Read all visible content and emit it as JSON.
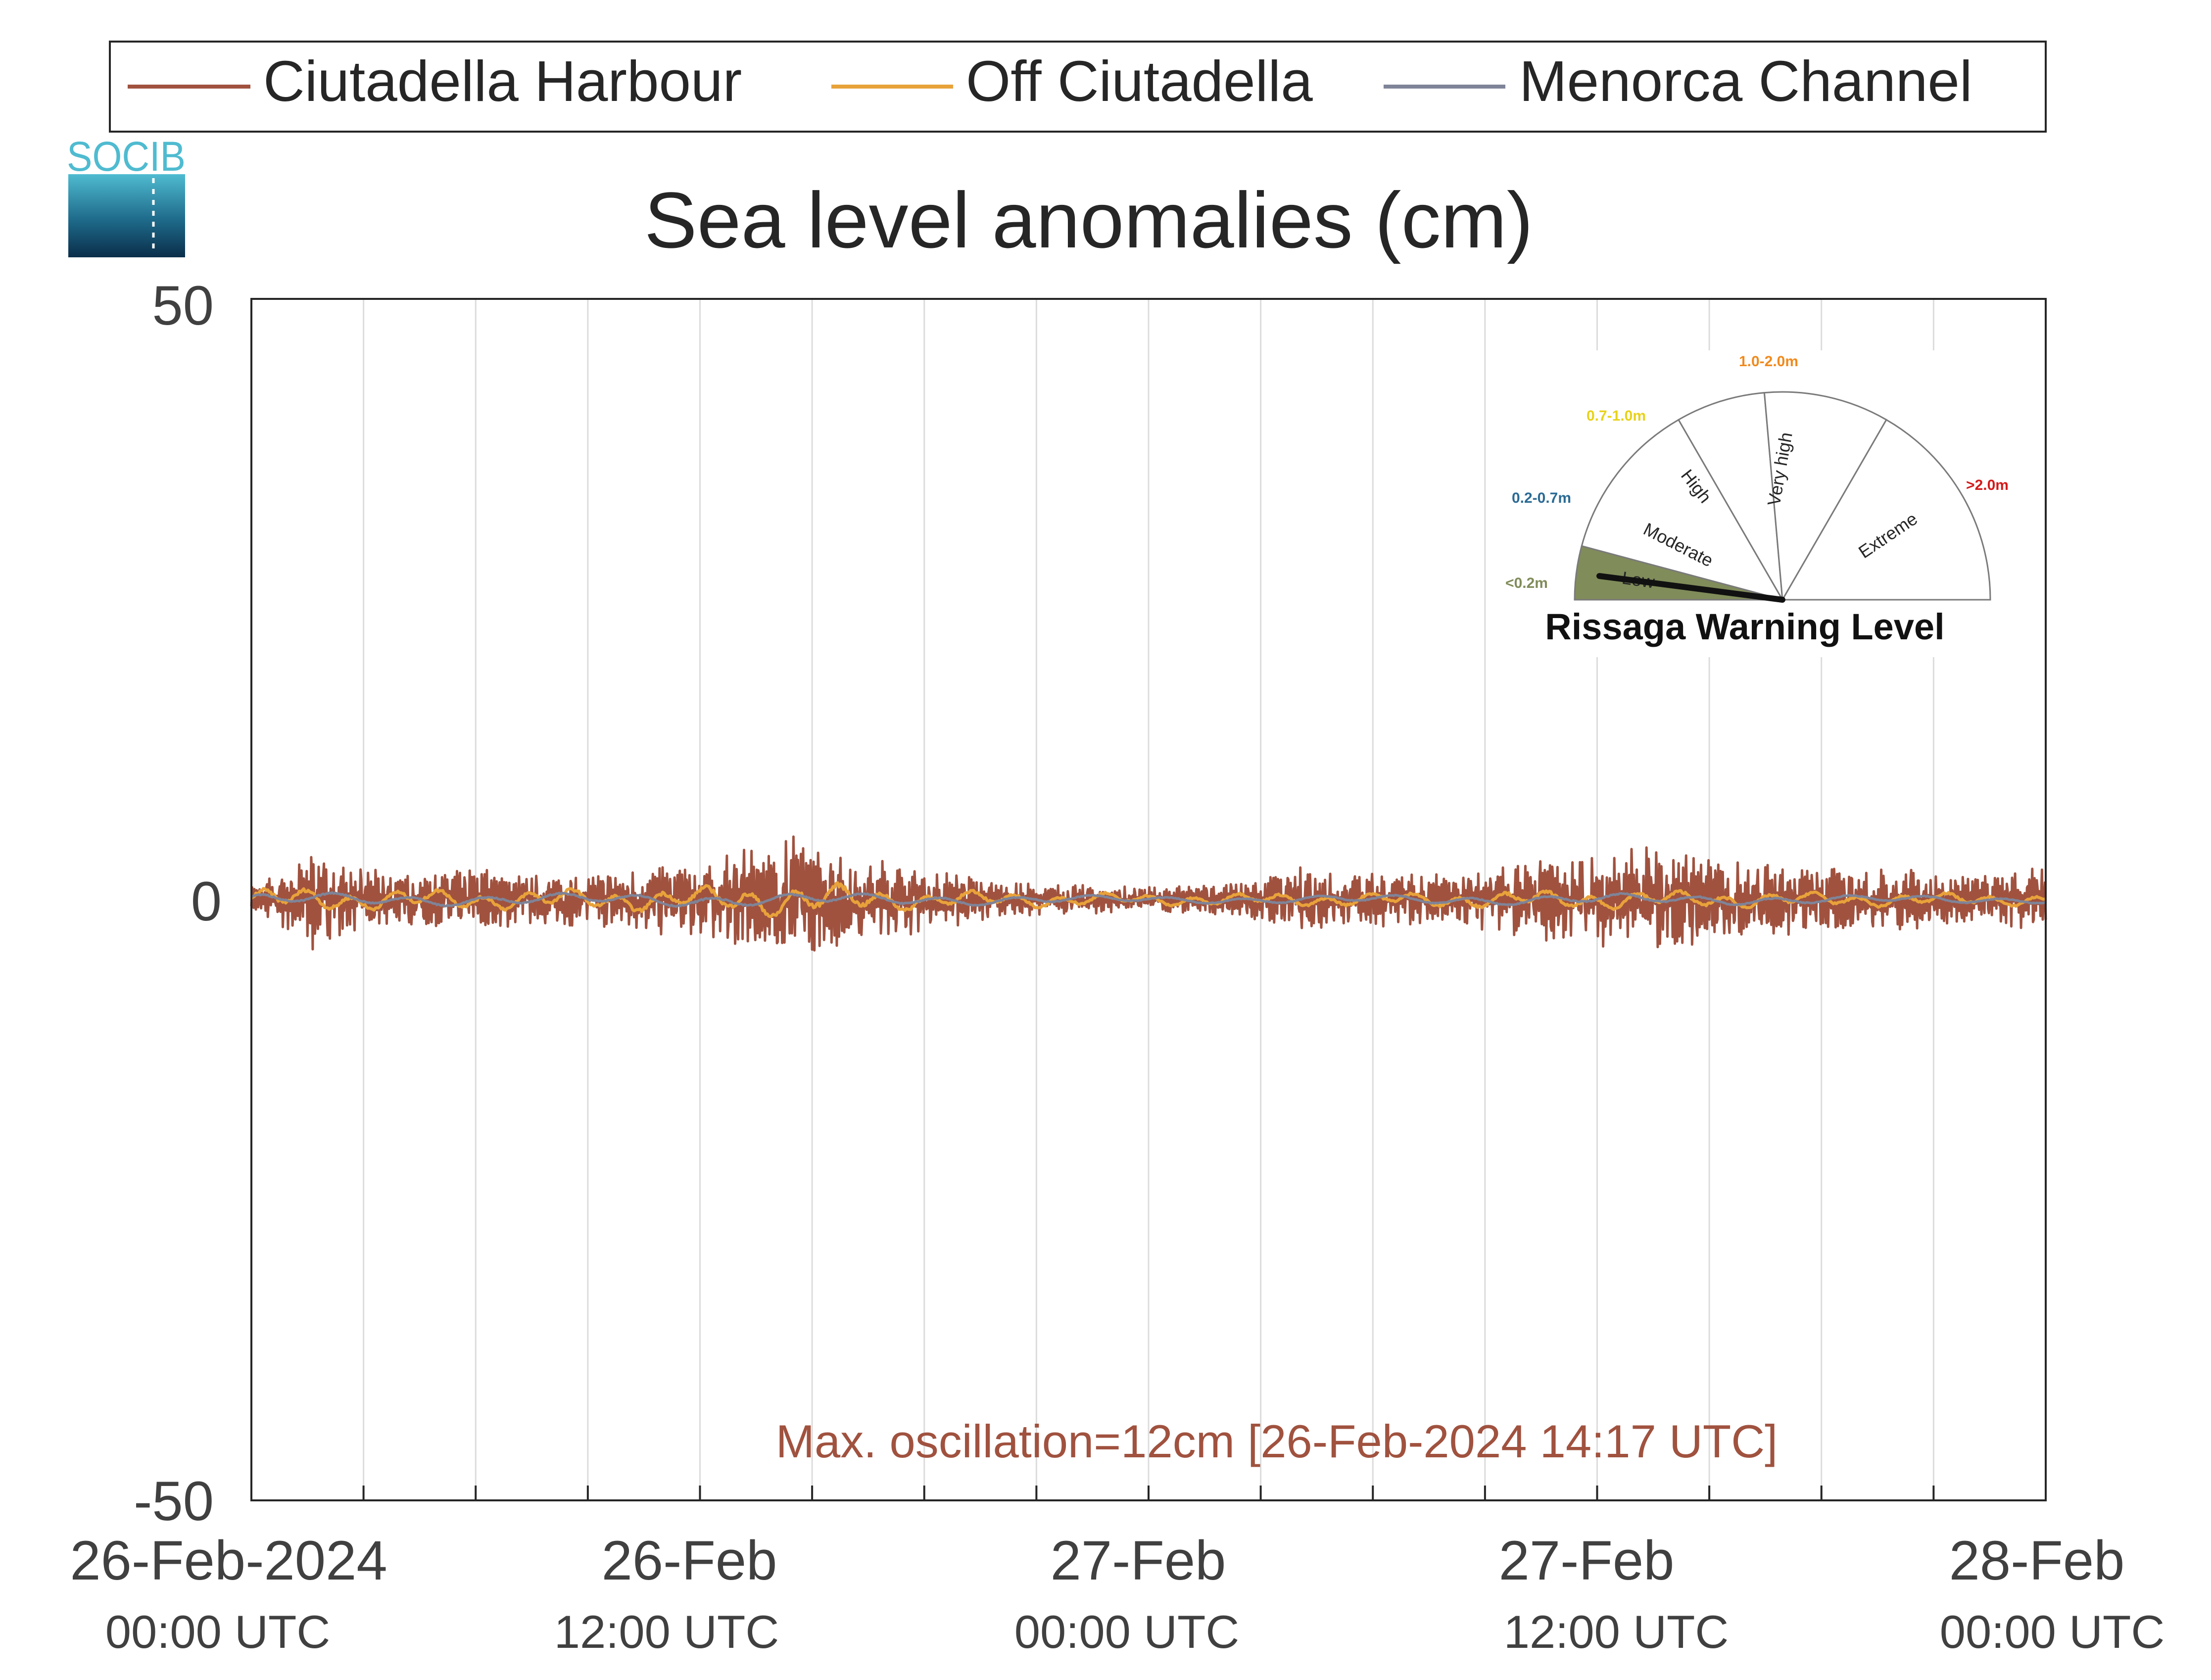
{
  "chart_data": {
    "type": "line",
    "title": "Sea level anomalies (cm)",
    "ylim": [
      -50,
      50
    ],
    "yticks": [
      50,
      0,
      -50
    ],
    "xlim": [
      "2024-02-26T00:00",
      "2024-02-28T00:00"
    ],
    "x_gridlines_hours": [
      3,
      6,
      9,
      12,
      15,
      18,
      21,
      24,
      27,
      30,
      33,
      36,
      39,
      42,
      45
    ],
    "xticks": [
      {
        "time": "2024-02-26T00:00",
        "line1": "26-Feb-2024",
        "line2": "00:00 UTC"
      },
      {
        "time": "2024-02-26T12:00",
        "line1": "26-Feb",
        "line2": "12:00 UTC"
      },
      {
        "time": "2024-02-27T00:00",
        "line1": "27-Feb",
        "line2": "00:00 UTC"
      },
      {
        "time": "2024-02-27T12:00",
        "line1": "27-Feb",
        "line2": "12:00 UTC"
      },
      {
        "time": "2024-02-28T00:00",
        "line1": "28-Feb",
        "line2": "00:00 UTC"
      }
    ],
    "grid": "vertical",
    "legend_position": "top",
    "series": [
      {
        "name": "Ciutadella Harbour",
        "color": "#a0523f",
        "x_hours": [
          0,
          1,
          1.7,
          2,
          3,
          4,
          6,
          8,
          10,
          11,
          12,
          14,
          14.3,
          15,
          16,
          18,
          19,
          20,
          21,
          24,
          26,
          27,
          28,
          30,
          32,
          33,
          34,
          36,
          37,
          38,
          39,
          40,
          42,
          44,
          46,
          48
        ],
        "amplitude": [
          1,
          2.5,
          4.5,
          3,
          2.5,
          2,
          2.5,
          2,
          2.2,
          3,
          3.5,
          4,
          6,
          4,
          3.5,
          2.5,
          2,
          1.5,
          1.2,
          1,
          1.2,
          1.8,
          2.5,
          2.2,
          2,
          2.5,
          3,
          3.5,
          4,
          4,
          3.5,
          3,
          2.5,
          2.5,
          2,
          2.5
        ],
        "min": -6,
        "max": 6
      },
      {
        "name": "Off Ciutadella",
        "color": "#e8a23a",
        "x_hours": [
          0,
          6,
          12,
          14.3,
          18,
          24,
          30,
          36,
          42,
          48
        ],
        "amplitude": [
          1,
          0.8,
          1,
          1.5,
          0.8,
          0.5,
          0.6,
          0.8,
          0.6,
          0.5
        ]
      },
      {
        "name": "Menorca Channel",
        "color": "#7f8498",
        "x_hours": [
          0,
          6,
          12,
          18,
          24,
          30,
          36,
          42,
          48
        ],
        "amplitude": [
          0.6,
          0.5,
          0.6,
          0.5,
          0.3,
          0.4,
          0.5,
          0.4,
          0.3
        ]
      }
    ],
    "annotation": {
      "text": "Max. oscillation=12cm [26-Feb-2024 14:17 UTC]",
      "color": "#a0523f"
    }
  },
  "logo": {
    "text": "SOCIB",
    "colors": [
      "#4fbbd0",
      "#1e6a8a",
      "#0a2e4a"
    ]
  },
  "gauge": {
    "title": "Rissaga Warning Level",
    "active_level": "Low",
    "levels": [
      {
        "name": "Low",
        "range": "<0.2m",
        "color": "#808c5a"
      },
      {
        "name": "Moderate",
        "range": "0.2-0.7m",
        "color": "#2b6b94"
      },
      {
        "name": "High",
        "range": "0.7-1.0m",
        "color": "#e8d21a"
      },
      {
        "name": "Very high",
        "range": "1.0-2.0m",
        "color": "#f08a1e"
      },
      {
        "name": "Extreme",
        "range": ">2.0m",
        "color": "#d41a1a"
      }
    ]
  }
}
